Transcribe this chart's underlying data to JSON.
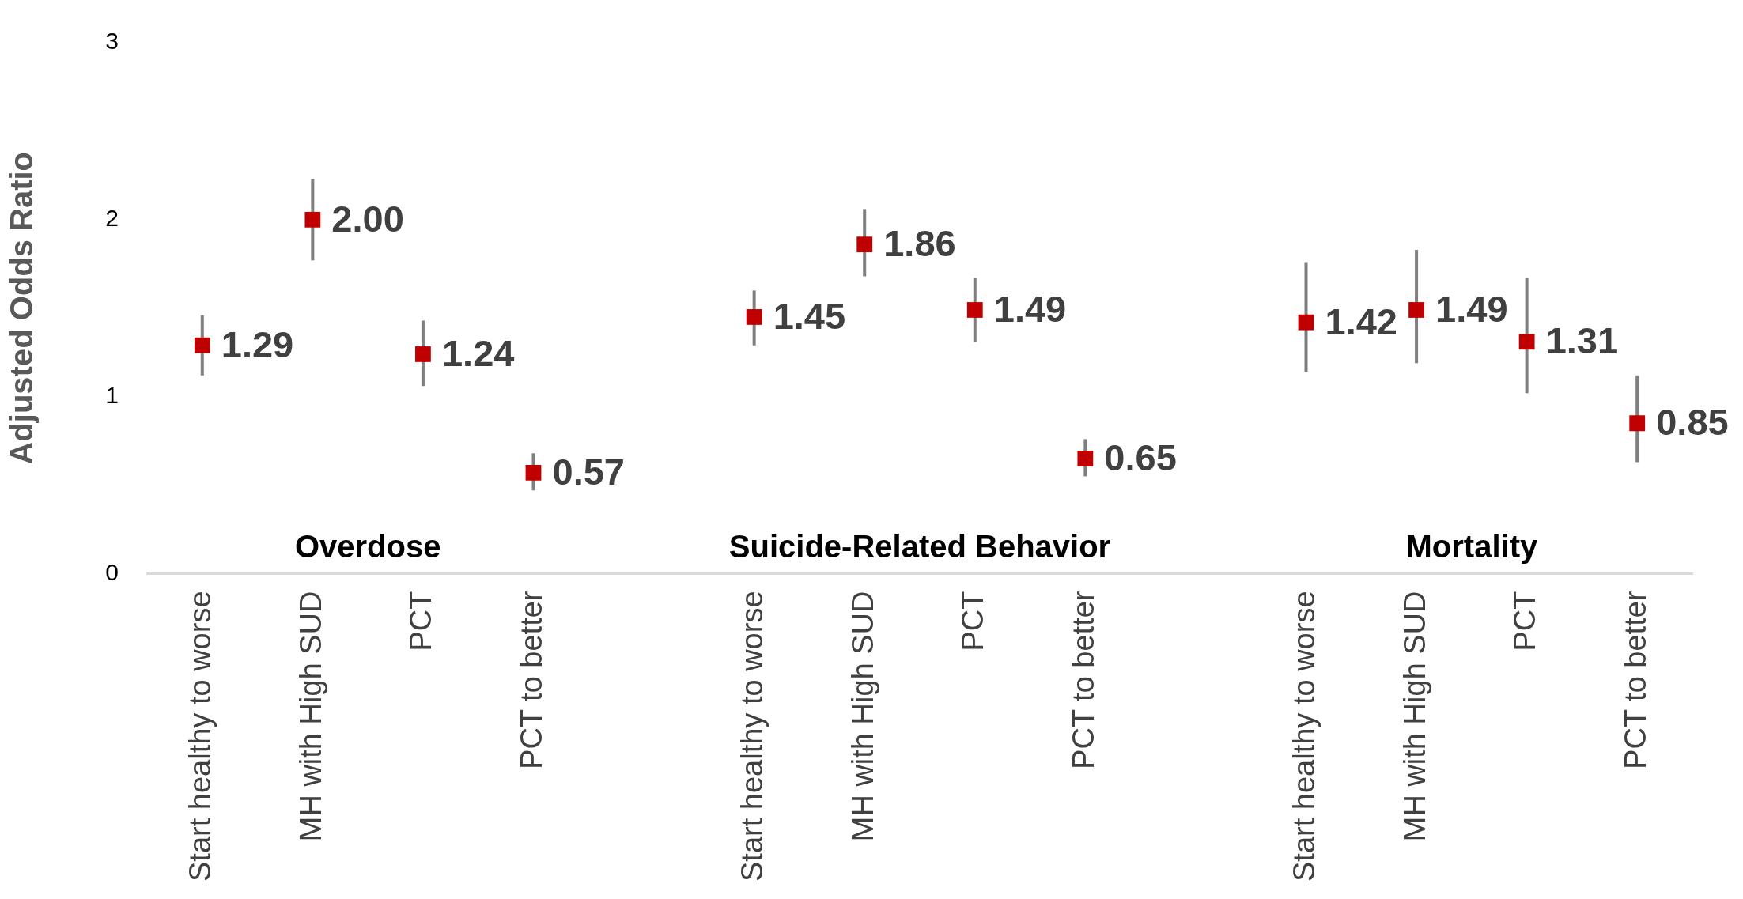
{
  "chart_data": {
    "type": "scatter",
    "ylabel": "Adjusted Odds Ratio",
    "categories": [
      "Start healthy to worse",
      "MH with High SUD",
      "PCT",
      "PCT to better",
      null,
      "Start healthy to worse",
      "MH with High SUD",
      "PCT",
      "PCT to better",
      null,
      "Start healthy to worse",
      "MH with High SUD",
      "PCT",
      "PCT to better"
    ],
    "series": [
      {
        "color": "#c00000",
        "values": [
          1.29,
          2.0,
          1.24,
          0.57,
          null,
          1.45,
          1.86,
          1.49,
          0.65,
          null,
          1.42,
          1.49,
          1.31,
          0.85
        ],
        "errors": [
          [
            1.12,
            1.46
          ],
          [
            1.77,
            2.23
          ],
          [
            1.06,
            1.43
          ],
          [
            0.47,
            0.68
          ],
          null,
          [
            1.29,
            1.6
          ],
          [
            1.68,
            2.06
          ],
          [
            1.31,
            1.67
          ],
          [
            0.55,
            0.76
          ],
          null,
          [
            1.14,
            1.76
          ],
          [
            1.19,
            1.83
          ],
          [
            1.02,
            1.67
          ],
          [
            0.63,
            1.12
          ]
        ],
        "value_labels": [
          "1.29",
          "2.00",
          "1.24",
          "0.57",
          null,
          "1.45",
          "1.86",
          "1.49",
          "0.65",
          null,
          "1.42",
          "1.49",
          "1.31",
          "0.85"
        ]
      }
    ],
    "ylim": [
      0,
      3
    ],
    "yticks": [
      0,
      1,
      2,
      3
    ],
    "annotations": [
      "Overdose",
      "Suicide-Related Behavior",
      "Mortality"
    ],
    "marker": "square",
    "grid": false,
    "legend": false
  }
}
